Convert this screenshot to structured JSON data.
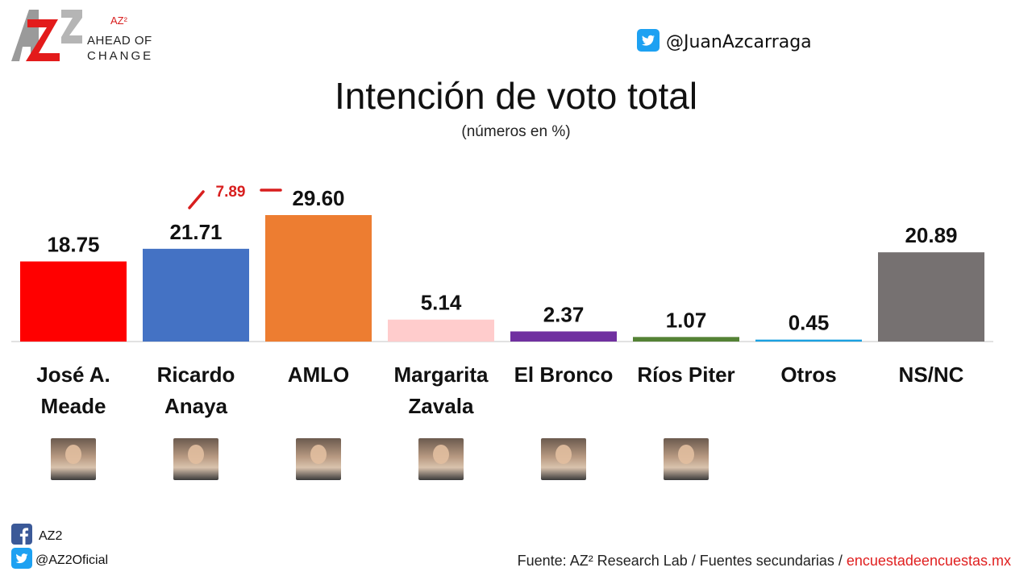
{
  "header": {
    "logo_superscript": "AZ²",
    "logo_line1": "AHEAD OF",
    "logo_line2": "CHANGE",
    "twitter_handle": "@JuanAzcarraga"
  },
  "chart_data": {
    "type": "bar",
    "title": "Intención de voto total",
    "subtitle": "(números en %)",
    "categories": [
      "José A. Meade",
      "Ricardo Anaya",
      "AMLO",
      "Margarita Zavala",
      "El Bronco",
      "Ríos Piter",
      "Otros",
      "NS/NC"
    ],
    "category_lines": [
      [
        "José A.",
        "Meade"
      ],
      [
        "Ricardo",
        "Anaya"
      ],
      [
        "AMLO"
      ],
      [
        "Margarita",
        "Zavala"
      ],
      [
        "El Bronco"
      ],
      [
        "Ríos Piter"
      ],
      [
        "Otros"
      ],
      [
        "NS/NC"
      ]
    ],
    "values": [
      18.75,
      21.71,
      29.6,
      5.14,
      2.37,
      1.07,
      0.45,
      20.89
    ],
    "value_labels": [
      "18.75",
      "21.71",
      "29.60",
      "5.14",
      "2.37",
      "1.07",
      "0.45",
      "20.89"
    ],
    "colors": [
      "#ff0000",
      "#4472c4",
      "#ed7d31",
      "#ffcccc",
      "#7030a0",
      "#548235",
      "#1aa0e0",
      "#767171"
    ],
    "annotation": {
      "text": "7.89",
      "between": [
        "Ricardo Anaya",
        "AMLO"
      ],
      "color": "#d81e1e"
    },
    "photos": [
      true,
      true,
      true,
      true,
      true,
      true,
      false,
      false
    ],
    "ylim": [
      0,
      30
    ]
  },
  "footer": {
    "facebook_label": "AZ2",
    "twitter_label": "@AZ2Oficial",
    "source_prefix": "Fuente: AZ² Research Lab / Fuentes secundarias / ",
    "source_link": "encuestadeencuestas.mx"
  },
  "colors": {
    "accent_red": "#d81e1e",
    "twitter_blue": "#1da1f2",
    "facebook_blue": "#3b5998"
  }
}
